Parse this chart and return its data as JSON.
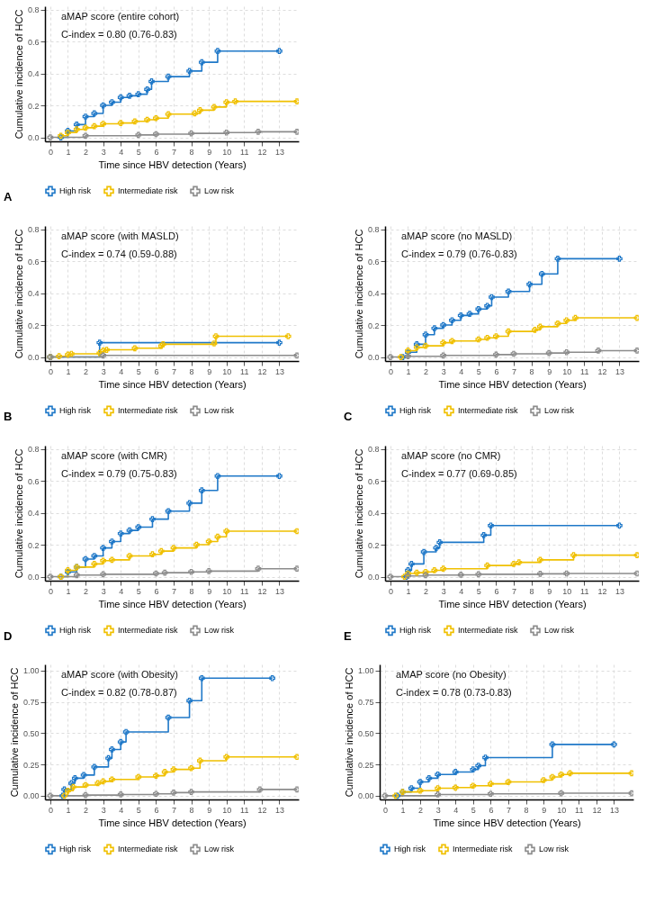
{
  "chart_data": [
    {
      "type": "step",
      "xlabel": "Time since HBV detection (Years)",
      "ylabel": "Cumulative incidence of HCC",
      "annotations": [
        "aMAP score (entire cohort)",
        "C-index = 0.80 (0.76-0.83)",
        "A"
      ],
      "xlim": [
        -0.3,
        14.1
      ],
      "xticks": [
        0,
        1,
        2,
        3,
        4,
        5,
        6,
        7,
        8,
        9,
        10,
        11,
        12,
        13
      ],
      "ylim": [
        -0.025,
        0.82
      ],
      "yticks": [
        {
          "value": 0,
          "label": "0.0"
        },
        0.2,
        0.4,
        0.6,
        0.8
      ],
      "grid": true,
      "legend": "bottom",
      "marker": "cross",
      "series": [
        {
          "name": "High risk",
          "color": "#1f78c8",
          "x": [
            0.6,
            1,
            1.5,
            2,
            2.5,
            3,
            3.5,
            4,
            4.5,
            5,
            5.5,
            5.75,
            6.7,
            7.9,
            8.6,
            9.5,
            13
          ],
          "values": [
            0,
            0.04,
            0.08,
            0.13,
            0.15,
            0.2,
            0.22,
            0.25,
            0.26,
            0.27,
            0.3,
            0.35,
            0.38,
            0.415,
            0.47,
            0.54,
            0.54
          ]
        },
        {
          "name": "Intermediate risk",
          "color": "#f0c000",
          "x": [
            0.6,
            1,
            1.5,
            2,
            2.5,
            3,
            4,
            4.8,
            5.5,
            6,
            6.7,
            8.2,
            8.5,
            9.3,
            10,
            10.5,
            14
          ],
          "values": [
            0.01,
            0.03,
            0.05,
            0.06,
            0.07,
            0.085,
            0.09,
            0.1,
            0.11,
            0.12,
            0.145,
            0.15,
            0.17,
            0.19,
            0.22,
            0.225,
            0.225
          ]
        },
        {
          "name": "Low risk",
          "color": "#8c8c8c",
          "x": [
            0,
            2,
            5,
            6,
            8,
            10,
            11.8,
            14
          ],
          "values": [
            0,
            0.01,
            0.015,
            0.02,
            0.025,
            0.03,
            0.035,
            0.035
          ]
        }
      ]
    },
    {
      "type": "step",
      "xlabel": "Time since HBV detection (Years)",
      "ylabel": "Cumulative incidence of HCC",
      "annotations": [
        "aMAP score (with MASLD)",
        "C-index = 0.74 (0.59-0.88)",
        "B"
      ],
      "xlim": [
        -0.3,
        14.1
      ],
      "xticks": [
        0,
        1,
        2,
        3,
        4,
        5,
        6,
        7,
        8,
        9,
        10,
        11,
        12,
        13
      ],
      "ylim": [
        -0.025,
        0.82
      ],
      "yticks": [
        {
          "value": 0,
          "label": "0.0"
        },
        0.2,
        0.4,
        0.6,
        0.8
      ],
      "grid": true,
      "legend": "bottom",
      "marker": "cross",
      "series": [
        {
          "name": "High risk",
          "color": "#1f78c8",
          "x": [
            0,
            2.8,
            13
          ],
          "values": [
            0,
            0.09,
            0.09
          ]
        },
        {
          "name": "Intermediate risk",
          "color": "#f0c000",
          "x": [
            0,
            0.5,
            1,
            1.2,
            2.8,
            3,
            3.2,
            4.8,
            6.3,
            6.4,
            9.3,
            9.4,
            13.5
          ],
          "values": [
            0,
            0.005,
            0.015,
            0.02,
            0.025,
            0.04,
            0.045,
            0.055,
            0.07,
            0.08,
            0.085,
            0.13,
            0.13
          ]
        },
        {
          "name": "Low risk",
          "color": "#8c8c8c",
          "x": [
            0,
            3,
            14
          ],
          "values": [
            0,
            0.01,
            0.01
          ]
        }
      ]
    },
    {
      "type": "step",
      "xlabel": "Time since HBV detection (Years)",
      "ylabel": "Cumulative incidence of HCC",
      "annotations": [
        "aMAP score (no MASLD)",
        "C-index = 0.79 (0.76-0.83)",
        "C"
      ],
      "xlim": [
        -0.3,
        14.1
      ],
      "xticks": [
        0,
        1,
        2,
        3,
        4,
        5,
        6,
        7,
        8,
        9,
        10,
        11,
        12,
        13
      ],
      "ylim": [
        -0.025,
        0.82
      ],
      "yticks": [
        {
          "value": 0,
          "label": "0.0"
        },
        0.2,
        0.4,
        0.6,
        0.8
      ],
      "grid": true,
      "legend": "bottom",
      "marker": "cross",
      "series": [
        {
          "name": "High risk",
          "color": "#1f78c8",
          "x": [
            0.7,
            1,
            1.5,
            2,
            2.5,
            3,
            3.5,
            4,
            4.5,
            5,
            5.5,
            5.75,
            6.7,
            7.9,
            8.6,
            9.5,
            13
          ],
          "values": [
            0,
            0.03,
            0.08,
            0.14,
            0.18,
            0.2,
            0.23,
            0.26,
            0.27,
            0.3,
            0.32,
            0.375,
            0.41,
            0.455,
            0.52,
            0.615,
            0.615
          ]
        },
        {
          "name": "Intermediate risk",
          "color": "#f0c000",
          "x": [
            0.6,
            1,
            1.5,
            2,
            3,
            3.5,
            5,
            5.5,
            6,
            6.7,
            8.2,
            8.5,
            9.5,
            10,
            10.5,
            14
          ],
          "values": [
            0,
            0.04,
            0.06,
            0.07,
            0.09,
            0.1,
            0.11,
            0.12,
            0.13,
            0.16,
            0.17,
            0.19,
            0.21,
            0.23,
            0.245,
            0.245
          ]
        },
        {
          "name": "Low risk",
          "color": "#8c8c8c",
          "x": [
            0,
            1,
            3,
            6,
            7,
            9,
            10,
            11.8,
            14
          ],
          "values": [
            0,
            0.005,
            0.01,
            0.015,
            0.02,
            0.025,
            0.03,
            0.04,
            0.04
          ]
        }
      ]
    },
    {
      "type": "step",
      "xlabel": "Time since HBV detection (Years)",
      "ylabel": "Cumulative incidence of HCC",
      "annotations": [
        "aMAP score (with CMR)",
        "C-index = 0.79 (0.75-0.83)",
        "D"
      ],
      "xlim": [
        -0.3,
        14.1
      ],
      "xticks": [
        0,
        1,
        2,
        3,
        4,
        5,
        6,
        7,
        8,
        9,
        10,
        11,
        12,
        13
      ],
      "ylim": [
        -0.025,
        0.82
      ],
      "yticks": [
        {
          "value": 0,
          "label": "0.0"
        },
        0.2,
        0.4,
        0.6,
        0.8
      ],
      "grid": true,
      "legend": "bottom",
      "marker": "cross",
      "series": [
        {
          "name": "High risk",
          "color": "#1f78c8",
          "x": [
            0.6,
            1,
            1.5,
            2,
            2.5,
            3,
            3.5,
            4,
            4.5,
            5,
            5.8,
            6.7,
            7.9,
            8.6,
            9.5,
            13
          ],
          "values": [
            0,
            0.03,
            0.06,
            0.11,
            0.13,
            0.18,
            0.22,
            0.27,
            0.29,
            0.31,
            0.36,
            0.41,
            0.46,
            0.54,
            0.63,
            0.63
          ]
        },
        {
          "name": "Intermediate risk",
          "color": "#f0c000",
          "x": [
            0.6,
            1,
            1.5,
            2.5,
            3,
            3.5,
            4.5,
            5.8,
            6.3,
            7,
            8.3,
            9,
            9.5,
            10,
            14
          ],
          "values": [
            0,
            0.04,
            0.06,
            0.08,
            0.1,
            0.105,
            0.13,
            0.14,
            0.16,
            0.18,
            0.2,
            0.22,
            0.25,
            0.285,
            0.285
          ]
        },
        {
          "name": "Low risk",
          "color": "#8c8c8c",
          "x": [
            0,
            1.5,
            3,
            6,
            6.5,
            8,
            9,
            11.8,
            14
          ],
          "values": [
            0,
            0.01,
            0.015,
            0.02,
            0.025,
            0.03,
            0.035,
            0.05,
            0.05
          ]
        }
      ]
    },
    {
      "type": "step",
      "xlabel": "Time since HBV detection (Years)",
      "ylabel": "Cumulative incidence of HCC",
      "annotations": [
        "aMAP score (no CMR)",
        "C-index = 0.77 (0.69-0.85)",
        "E"
      ],
      "xlim": [
        -0.3,
        14.1
      ],
      "xticks": [
        0,
        1,
        2,
        3,
        4,
        5,
        6,
        7,
        8,
        9,
        10,
        11,
        12,
        13
      ],
      "ylim": [
        -0.025,
        0.82
      ],
      "yticks": [
        {
          "value": 0,
          "label": "0.0"
        },
        0.2,
        0.4,
        0.6,
        0.8
      ],
      "grid": true,
      "legend": "bottom",
      "marker": "cross",
      "series": [
        {
          "name": "High risk",
          "color": "#1f78c8",
          "x": [
            0.9,
            1,
            1.2,
            1.9,
            2.6,
            2.8,
            5.3,
            5.7,
            13
          ],
          "values": [
            0,
            0.04,
            0.08,
            0.155,
            0.18,
            0.215,
            0.26,
            0.32,
            0.32
          ]
        },
        {
          "name": "Intermediate risk",
          "color": "#f0c000",
          "x": [
            0.8,
            1,
            1.5,
            2,
            2.5,
            3,
            5.5,
            7,
            7.3,
            8.5,
            10.4,
            14
          ],
          "values": [
            0,
            0.02,
            0.025,
            0.03,
            0.04,
            0.05,
            0.07,
            0.08,
            0.09,
            0.105,
            0.135,
            0.135
          ]
        },
        {
          "name": "Low risk",
          "color": "#8c8c8c",
          "x": [
            0,
            1,
            2,
            4,
            5,
            8.5,
            10,
            14
          ],
          "values": [
            0,
            0.005,
            0.01,
            0.012,
            0.015,
            0.018,
            0.02,
            0.02
          ]
        }
      ]
    },
    {
      "type": "step",
      "xlabel": "Time since HBV detection (Years)",
      "ylabel": "Cumulative incidence of HCC",
      "annotations": [
        "aMAP score (with Obesity)",
        "C-index = 0.82 (0.78-0.87)"
      ],
      "xlim": [
        -0.3,
        14.1
      ],
      "xticks": [
        0,
        1,
        2,
        3,
        4,
        5,
        6,
        7,
        8,
        9,
        10,
        11,
        12,
        13
      ],
      "ylim": [
        -0.03,
        1.05
      ],
      "yticks": [
        {
          "value": 0,
          "label": "0.00"
        },
        0.25,
        {
          "value": 0.5,
          "label": "0.50"
        },
        0.75,
        {
          "value": 1,
          "label": "1.00"
        }
      ],
      "grid": true,
      "legend": "bottom",
      "marker": "cross",
      "series": [
        {
          "name": "High risk",
          "color": "#1f78c8",
          "x": [
            0.7,
            0.8,
            1.2,
            1.4,
            1.9,
            2.5,
            3.3,
            3.5,
            4,
            4.3,
            6.7,
            7.9,
            8.6,
            12.6
          ],
          "values": [
            0,
            0.05,
            0.1,
            0.14,
            0.165,
            0.23,
            0.3,
            0.37,
            0.43,
            0.51,
            0.625,
            0.76,
            0.94,
            0.94
          ]
        },
        {
          "name": "Intermediate risk",
          "color": "#f0c000",
          "x": [
            0.8,
            1,
            1.3,
            2,
            2.7,
            3,
            3.5,
            5,
            6,
            6.5,
            7,
            8,
            8.5,
            10,
            14
          ],
          "values": [
            0,
            0.04,
            0.07,
            0.085,
            0.1,
            0.115,
            0.13,
            0.15,
            0.16,
            0.19,
            0.21,
            0.22,
            0.28,
            0.31,
            0.31
          ]
        },
        {
          "name": "Low risk",
          "color": "#8c8c8c",
          "x": [
            0,
            2,
            4,
            6,
            7,
            8,
            11.9,
            14
          ],
          "values": [
            0,
            0.005,
            0.01,
            0.015,
            0.025,
            0.03,
            0.05,
            0.05
          ]
        }
      ]
    },
    {
      "type": "step",
      "xlabel": "Time since HBV detection (Years)",
      "ylabel": "Cumulative incidence of HCC",
      "annotations": [
        "aMAP score (no Obesity)",
        "C-index = 0.78 (0.73-0.83)"
      ],
      "xlim": [
        -0.3,
        14.1
      ],
      "xticks": [
        0,
        1,
        2,
        3,
        4,
        5,
        6,
        7,
        8,
        9,
        10,
        11,
        12,
        13
      ],
      "ylim": [
        -0.03,
        1.05
      ],
      "yticks": [
        {
          "value": 0,
          "label": "0.00"
        },
        0.25,
        {
          "value": 0.5,
          "label": "0.50"
        },
        0.75,
        {
          "value": 1,
          "label": "1.00"
        }
      ],
      "grid": true,
      "legend": "bottom",
      "marker": "cross",
      "series": [
        {
          "name": "High risk",
          "color": "#1f78c8",
          "x": [
            0.7,
            1,
            1.5,
            2,
            2.5,
            3,
            4,
            5,
            5.3,
            5.7,
            9.5,
            13
          ],
          "values": [
            0,
            0.03,
            0.06,
            0.11,
            0.14,
            0.17,
            0.19,
            0.21,
            0.24,
            0.305,
            0.41,
            0.41
          ]
        },
        {
          "name": "Intermediate risk",
          "color": "#f0c000",
          "x": [
            0.6,
            1,
            2,
            3,
            4,
            5,
            6,
            7,
            9,
            9.5,
            10,
            10.5,
            14
          ],
          "values": [
            0,
            0.03,
            0.04,
            0.06,
            0.065,
            0.08,
            0.095,
            0.11,
            0.125,
            0.15,
            0.17,
            0.18,
            0.18
          ]
        },
        {
          "name": "Low risk",
          "color": "#8c8c8c",
          "x": [
            0,
            3,
            6,
            10,
            14
          ],
          "values": [
            0,
            0.01,
            0.015,
            0.02,
            0.02
          ]
        }
      ]
    }
  ]
}
